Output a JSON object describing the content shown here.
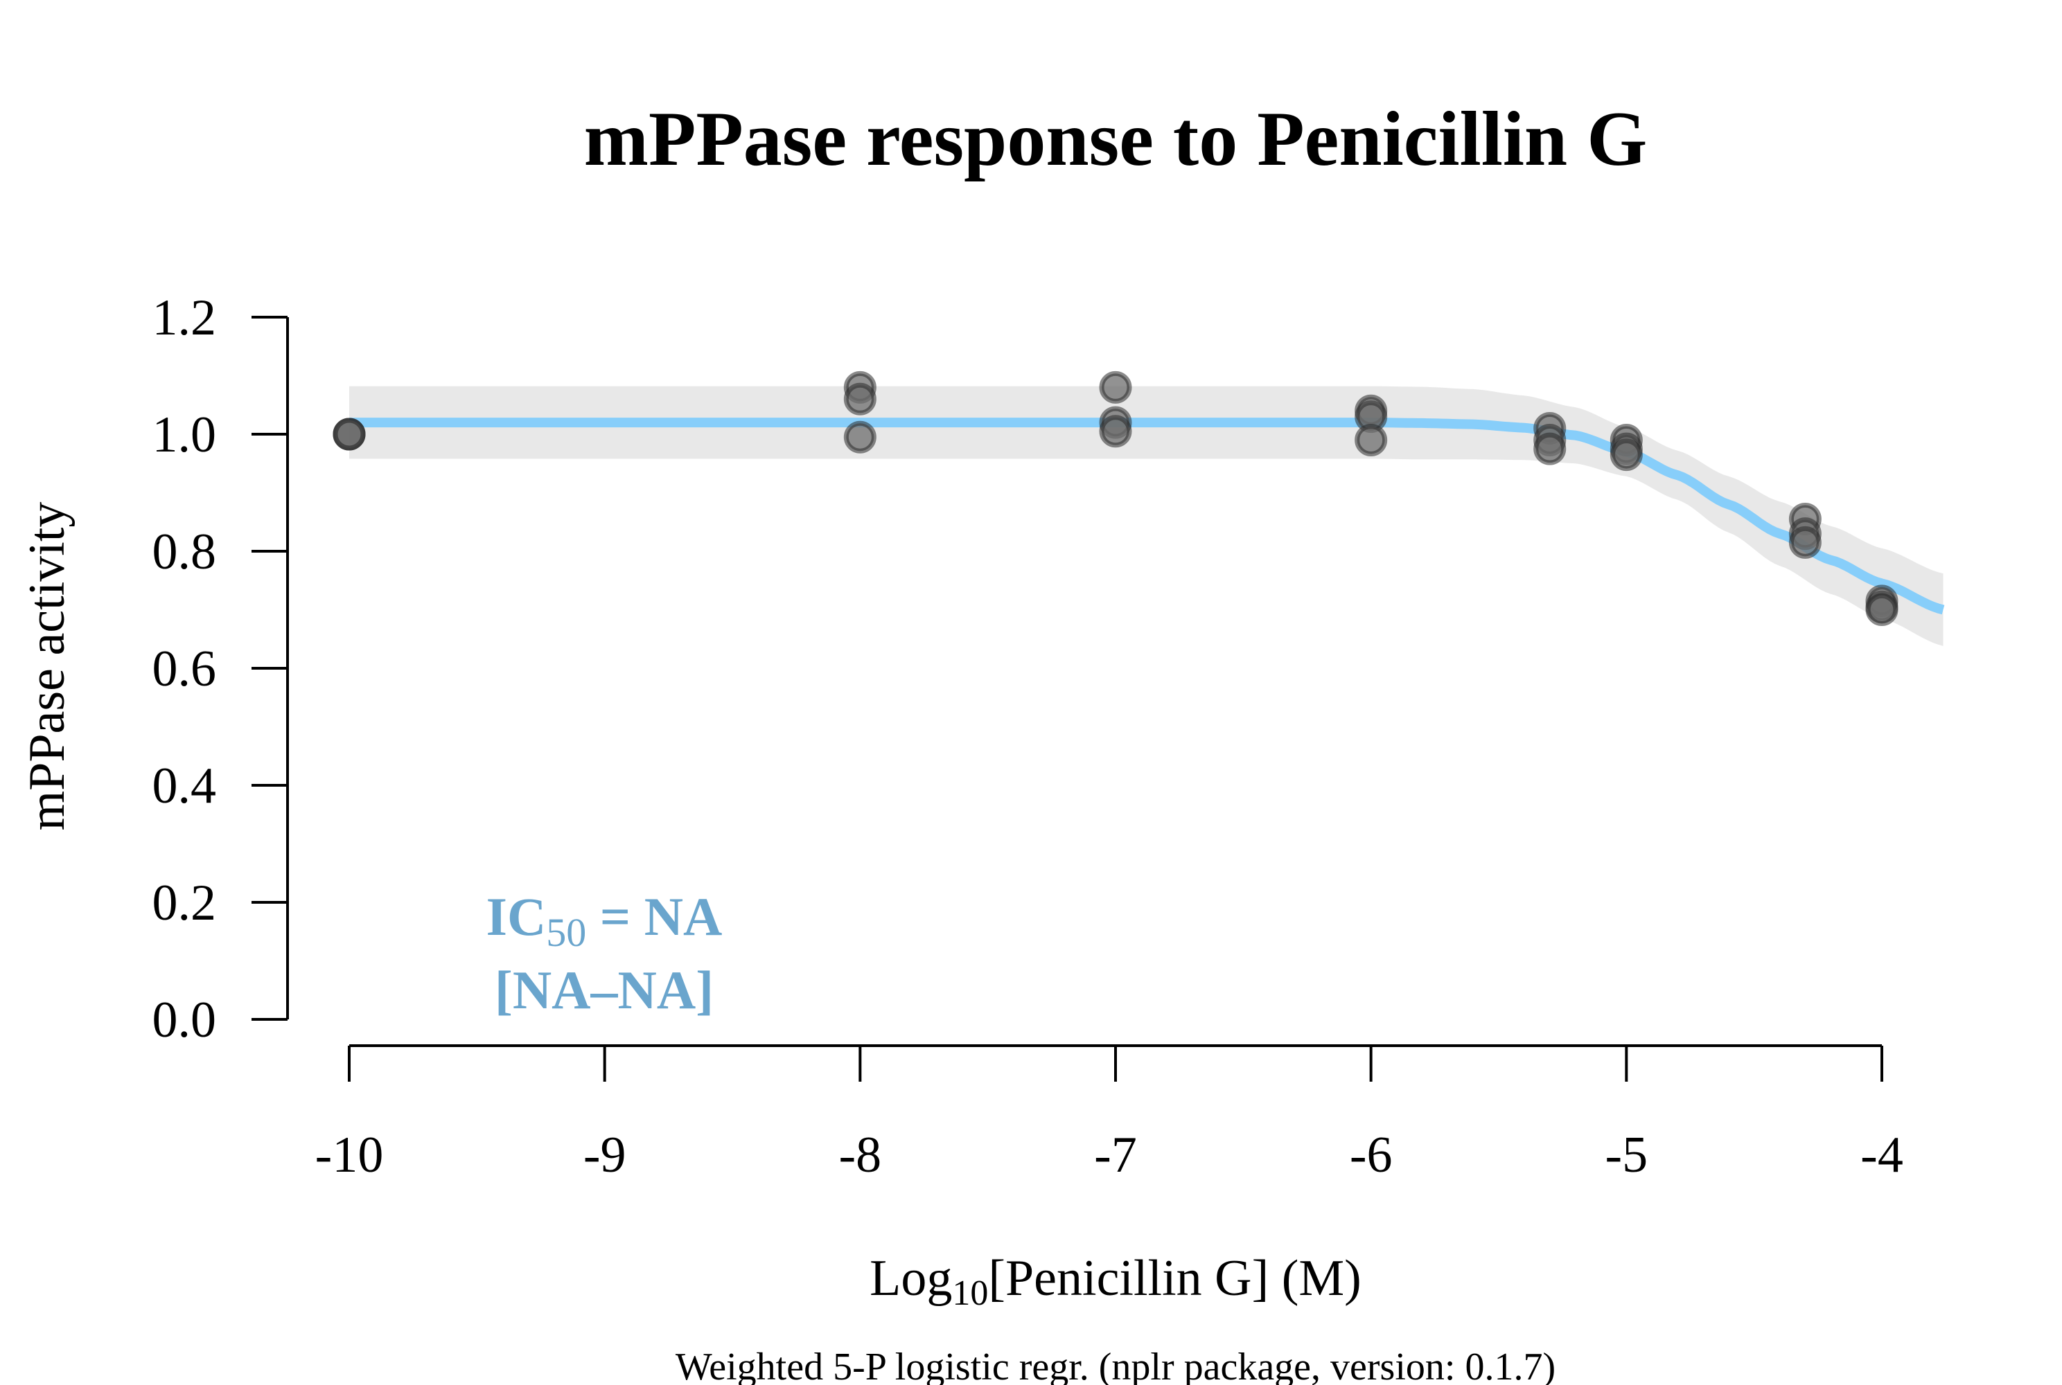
{
  "chart_data": {
    "type": "scatter",
    "title": "mPPase response to Penicillin G",
    "xlabel": {
      "prefix": "Log",
      "sub": "10",
      "suffix": "[Penicillin G] (M)"
    },
    "ylabel": "mPPase activity",
    "footnote": "Weighted 5-P logistic regr. (nplr package, version: 0.1.7)",
    "annotation": {
      "line1": {
        "prefix": "IC",
        "sub": "50",
        "suffix": " = NA"
      },
      "line2": "[NA–NA]"
    },
    "xlim": [
      -10,
      -4
    ],
    "ylim": [
      0,
      1.2
    ],
    "x_ticks": [
      "-10",
      "-9",
      "-8",
      "-7",
      "-6",
      "-5",
      "-4"
    ],
    "y_ticks": [
      "0.0",
      "0.2",
      "0.4",
      "0.6",
      "0.8",
      "1.0",
      "1.2"
    ],
    "points": [
      {
        "x": -10,
        "y": 1.0
      },
      {
        "x": -10,
        "y": 1.0
      },
      {
        "x": -10,
        "y": 1.0
      },
      {
        "x": -8,
        "y": 1.08
      },
      {
        "x": -8,
        "y": 1.06
      },
      {
        "x": -8,
        "y": 0.995
      },
      {
        "x": -7,
        "y": 1.08
      },
      {
        "x": -7,
        "y": 1.02
      },
      {
        "x": -7,
        "y": 1.005
      },
      {
        "x": -6,
        "y": 1.04
      },
      {
        "x": -6,
        "y": 1.03
      },
      {
        "x": -6,
        "y": 0.99
      },
      {
        "x": -5.3,
        "y": 1.01
      },
      {
        "x": -5.3,
        "y": 0.99
      },
      {
        "x": -5.3,
        "y": 0.975
      },
      {
        "x": -5,
        "y": 0.99
      },
      {
        "x": -5,
        "y": 0.975
      },
      {
        "x": -5,
        "y": 0.965
      },
      {
        "x": -4.3,
        "y": 0.855
      },
      {
        "x": -4.3,
        "y": 0.83
      },
      {
        "x": -4.3,
        "y": 0.815
      },
      {
        "x": -4,
        "y": 0.715
      },
      {
        "x": -4,
        "y": 0.705
      },
      {
        "x": -4,
        "y": 0.7
      }
    ],
    "fit": {
      "name": "5-P logistic fit",
      "x": [
        -10,
        -9,
        -8,
        -7,
        -6,
        -5.8,
        -5.6,
        -5.4,
        -5.2,
        -5.0,
        -4.8,
        -4.6,
        -4.4,
        -4.2,
        -4.0,
        -3.76
      ],
      "y": [
        1.02,
        1.02,
        1.02,
        1.02,
        1.02,
        1.019,
        1.017,
        1.011,
        0.998,
        0.97,
        0.93,
        0.88,
        0.83,
        0.785,
        0.745,
        0.7
      ],
      "band_half_width": [
        0.062,
        0.062,
        0.062,
        0.062,
        0.062,
        0.062,
        0.06,
        0.055,
        0.048,
        0.042,
        0.042,
        0.048,
        0.055,
        0.058,
        0.06,
        0.062
      ]
    },
    "colors": {
      "fit_line": "#87cefa",
      "band": "#e8e8e8",
      "point_fill": "#6e6e6e",
      "point_stroke": "#2a2a2a",
      "annotation": "#6aa5cd",
      "axis": "#000000"
    }
  }
}
